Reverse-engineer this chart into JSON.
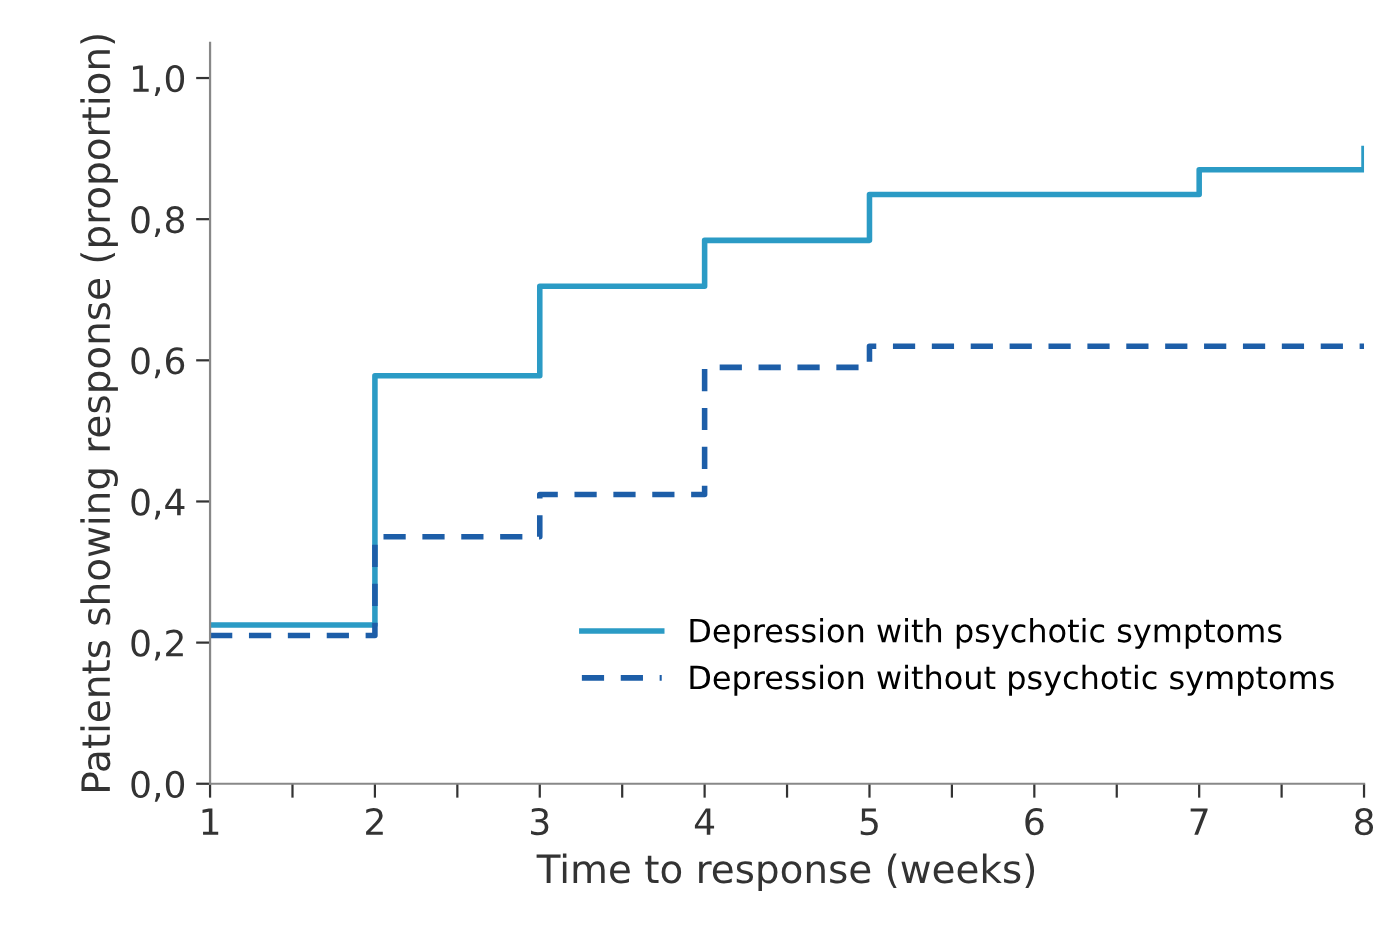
{
  "chart_data": {
    "type": "step",
    "xlabel": "Time to response (weeks)",
    "ylabel": "Patients showing response (proportion)",
    "xlim": [
      1,
      8
    ],
    "ylim": [
      0,
      1.05
    ],
    "xticks": [
      1,
      {
        "value": 1.5,
        "label": null
      },
      2,
      {
        "value": 2.5,
        "label": null
      },
      3,
      {
        "value": 3.5,
        "label": null
      },
      4,
      {
        "value": 4.5,
        "label": null
      },
      5,
      {
        "value": 5.5,
        "label": null
      },
      6,
      {
        "value": 6.5,
        "label": null
      },
      7,
      {
        "value": 7.5,
        "label": null
      },
      8
    ],
    "yticks": [
      {
        "value": 0,
        "label": "0,0"
      },
      {
        "value": 0.2,
        "label": "0,2"
      },
      {
        "value": 0.4,
        "label": "0,4"
      },
      {
        "value": 0.6,
        "label": "0,6"
      },
      {
        "value": 0.8,
        "label": "0,8"
      },
      {
        "value": 1.0,
        "label": "1,0"
      }
    ],
    "grid": false,
    "legend": "bottom right",
    "series": [
      {
        "name": "Depression with psychotic symptoms",
        "color": "#2b9bc5",
        "line_style": "solid",
        "x": [
          1,
          2,
          3,
          4,
          5,
          7,
          8
        ],
        "values": [
          0.225,
          0.578,
          0.705,
          0.77,
          0.835,
          0.87,
          0.9
        ]
      },
      {
        "name": "Depression without psychotic symptoms",
        "color": "#1d5ea8",
        "line_style": "dashed",
        "x": [
          1,
          2,
          3,
          4,
          5,
          8
        ],
        "values": [
          0.21,
          0.35,
          0.41,
          0.59,
          0.62,
          0.62
        ]
      }
    ]
  }
}
